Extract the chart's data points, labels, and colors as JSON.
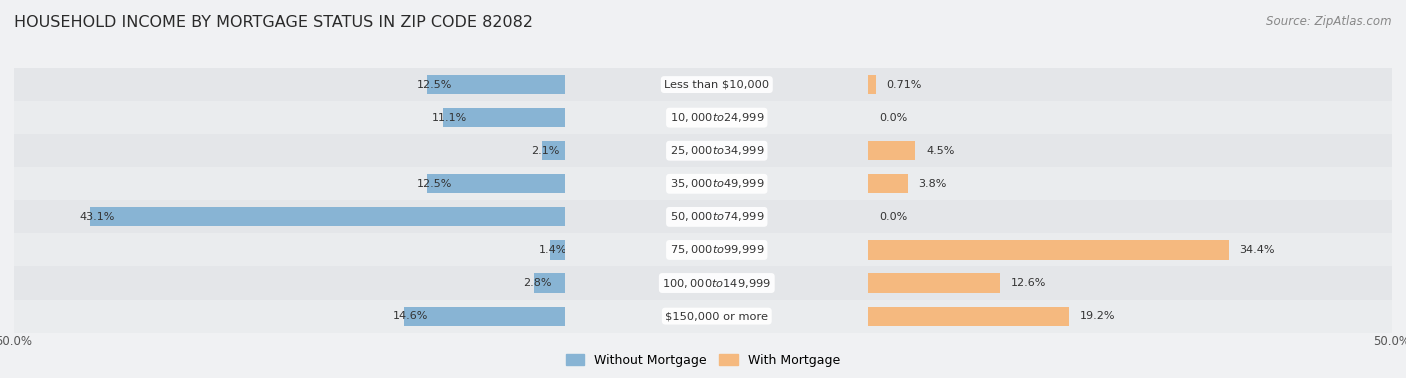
{
  "title": "HOUSEHOLD INCOME BY MORTGAGE STATUS IN ZIP CODE 82082",
  "source": "Source: ZipAtlas.com",
  "categories": [
    "Less than $10,000",
    "$10,000 to $24,999",
    "$25,000 to $34,999",
    "$35,000 to $49,999",
    "$50,000 to $74,999",
    "$75,000 to $99,999",
    "$100,000 to $149,999",
    "$150,000 or more"
  ],
  "without_mortgage": [
    12.5,
    11.1,
    2.1,
    12.5,
    43.1,
    1.4,
    2.8,
    14.6
  ],
  "with_mortgage": [
    0.71,
    0.0,
    4.5,
    3.8,
    0.0,
    34.4,
    12.6,
    19.2
  ],
  "without_mortgage_labels": [
    "12.5%",
    "11.1%",
    "2.1%",
    "12.5%",
    "43.1%",
    "1.4%",
    "2.8%",
    "14.6%"
  ],
  "with_mortgage_labels": [
    "0.71%",
    "0.0%",
    "4.5%",
    "3.8%",
    "0.0%",
    "34.4%",
    "12.6%",
    "19.2%"
  ],
  "color_without": "#88b4d4",
  "color_with": "#f5b97f",
  "row_colors": [
    "#e8eaec",
    "#edeef0"
  ],
  "xlim_left": 50,
  "xlim_right": 50,
  "legend_without": "Without Mortgage",
  "legend_with": "With Mortgage",
  "title_fontsize": 11.5,
  "source_fontsize": 8.5,
  "label_fontsize": 8,
  "category_fontsize": 8.2,
  "bar_height": 0.58,
  "fig_bg": "#f0f1f3",
  "row_bg_even": "#e4e6e9",
  "row_bg_odd": "#eaecee"
}
